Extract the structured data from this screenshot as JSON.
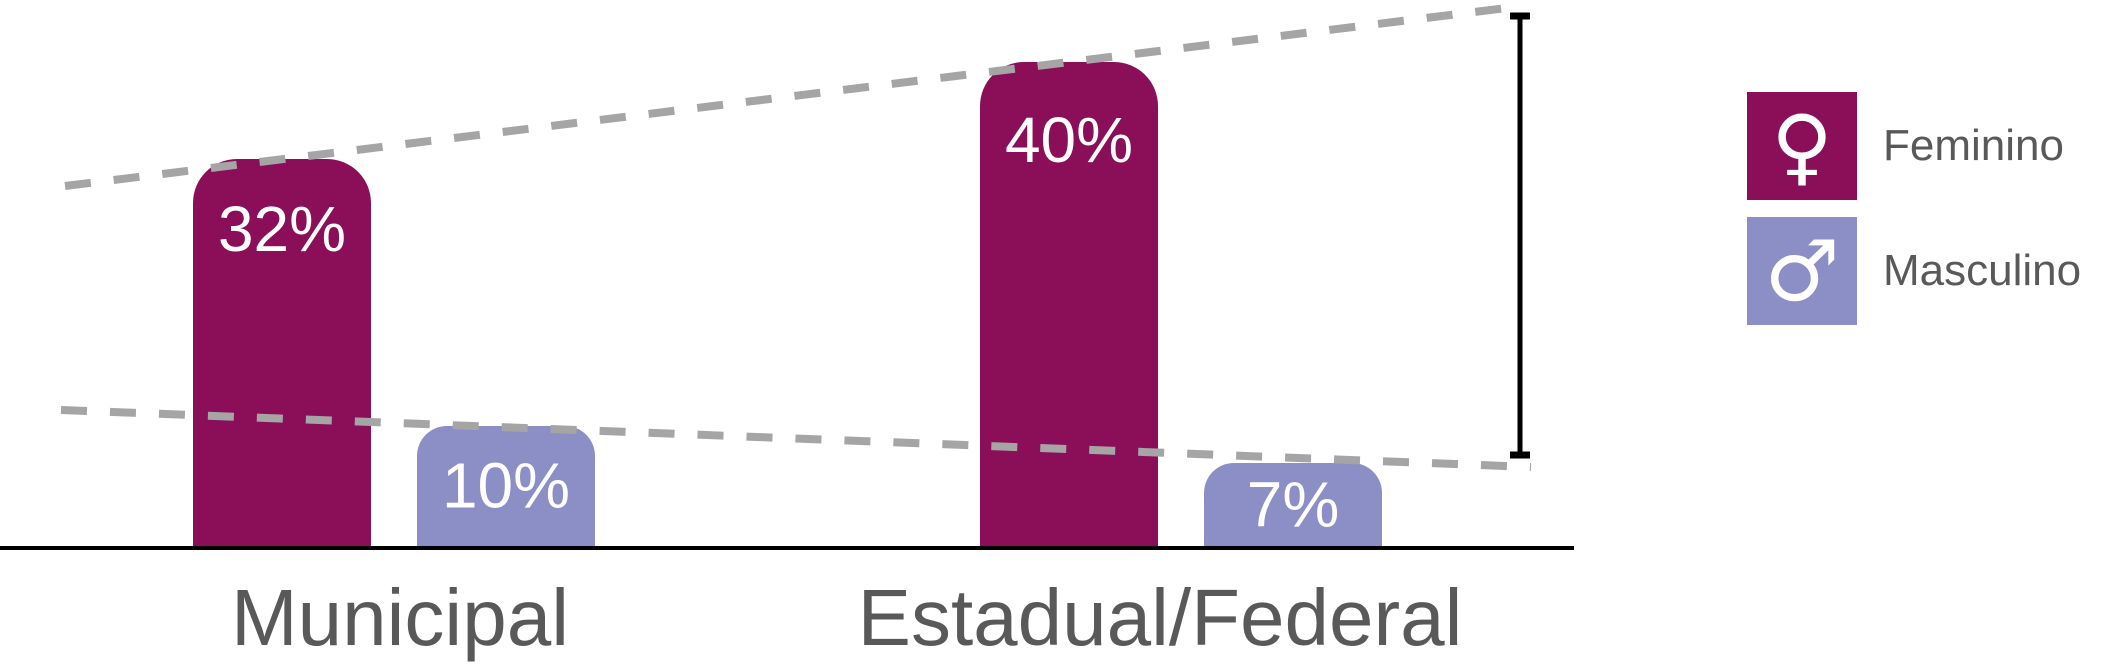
{
  "chart_data": {
    "type": "bar",
    "categories": [
      "Municipal",
      "Estadual/Federal"
    ],
    "series": [
      {
        "name": "Feminino",
        "values": [
          32,
          40
        ],
        "color": "#8B0E59"
      },
      {
        "name": "Masculino",
        "values": [
          10,
          7
        ],
        "color": "#8C8EC6"
      }
    ],
    "title": "",
    "xlabel": "",
    "ylabel": "",
    "ylim": [
      0,
      45
    ],
    "grid": false,
    "legend_position": "right",
    "value_label_format": "percent",
    "trend_lines": [
      {
        "series": "Feminino",
        "style": "gray-dashed",
        "across": "bar tops, extended to chart edges"
      },
      {
        "series": "Masculino",
        "style": "gray-dashed",
        "across": "bar tops, extended to chart edges"
      }
    ],
    "gap_bracket": {
      "position": "right edge",
      "spans": "between the two dashed trend lines"
    }
  },
  "bars": [
    {
      "label": "32%"
    },
    {
      "label": "10%"
    },
    {
      "label": "40%"
    },
    {
      "label": "7%"
    }
  ],
  "x_axis": {
    "labels": [
      "Municipal",
      "Estadual/Federal"
    ]
  },
  "legend": {
    "items": [
      {
        "glyph": "♀",
        "icon": "female-sign-icon",
        "label": "Feminino"
      },
      {
        "glyph": "♂",
        "icon": "male-sign-icon",
        "label": "Masculino"
      }
    ]
  },
  "colors": {
    "feminino": "#8B0E59",
    "masculino": "#8C8EC6",
    "trend_dash": "#A5A5A5",
    "axis_text": "#595959",
    "axis_line": "#000000",
    "bracket": "#000000",
    "value_text": "#FFFFFF"
  }
}
